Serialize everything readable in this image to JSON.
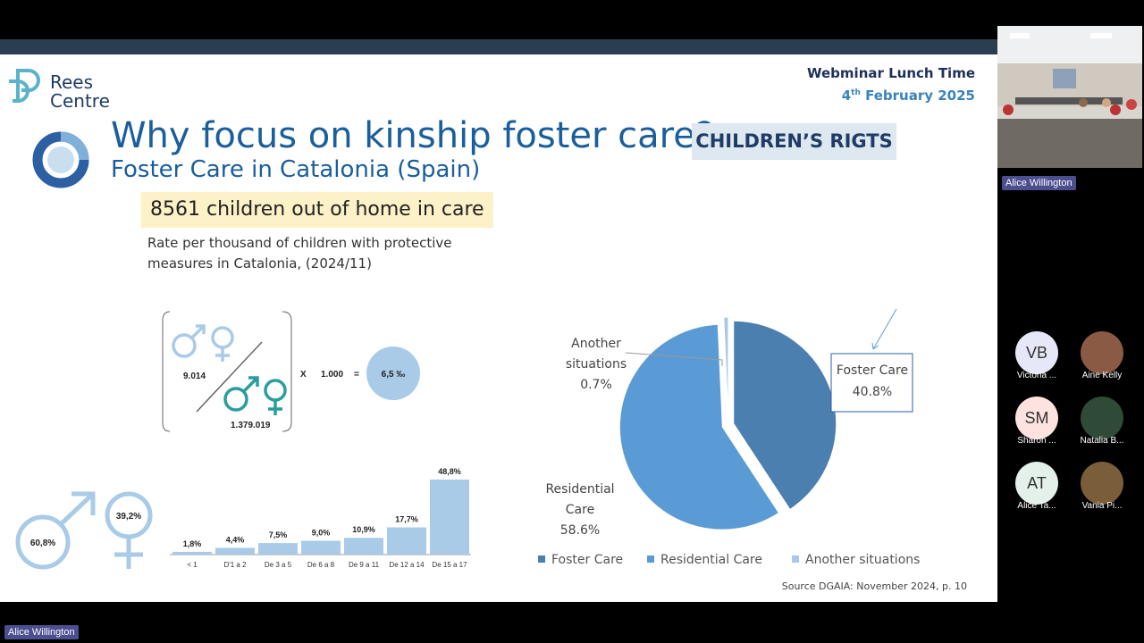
{
  "slide": {
    "logo_line1": "Rees",
    "logo_line2": "Centre",
    "event_title": "Webminar Lunch Time",
    "date_day": "4",
    "date_sup": "th",
    "date_rest": "February 2025",
    "title": "Why focus on kinship foster care?",
    "subtitle": "Foster Care in Catalonia (Spain)",
    "rights_box": "CHILDREN’S RIGTS",
    "highlight": "8561 children out of home in care",
    "rate_caption": "Rate per thousand of children with protective measures in Catalonia, (2024/11)",
    "formula": {
      "numerator": "9.014",
      "denominator": "1.379.019",
      "times": "X",
      "multiplier": "1.000",
      "equals": "=",
      "result": "6,5 ‰"
    },
    "gender": {
      "male_pct": "60,8%",
      "female_pct": "39,2%"
    },
    "source": "Source DGAIA: November 2024, p. 10",
    "colors": {
      "title": "#1a5e9c",
      "light_blue": "#a9cbe8",
      "teal": "#2a9d9f"
    }
  },
  "chart_data": [
    {
      "type": "bar",
      "categories": [
        "< 1",
        "D'1 a 2",
        "De 3 a 5",
        "De 6 a 8",
        "De 9 a 11",
        "De 12 a 14",
        "De 15 a 17"
      ],
      "values": [
        1.8,
        4.4,
        7.5,
        9.0,
        10.9,
        17.7,
        48.8
      ],
      "labels": [
        "1,8%",
        "4,4%",
        "7,5%",
        "9,0%",
        "10,9%",
        "17,7%",
        "48,8%"
      ],
      "ylim": [
        0,
        48.8
      ],
      "color": "#a9cbe8"
    },
    {
      "type": "pie",
      "series": [
        {
          "name": "Foster Care",
          "value": 40.8,
          "label": "Foster Care",
          "pct": "40.8%",
          "color": "#4a7fb0"
        },
        {
          "name": "Residential Care",
          "value": 58.6,
          "label": "Residential Care",
          "pct": "58.6%",
          "color": "#5b9bd5"
        },
        {
          "name": "Another situations",
          "value": 0.7,
          "label": "Another situations",
          "pct": "0.7%",
          "color": "#a9c8e6"
        }
      ],
      "legend": "bottom"
    }
  ],
  "meeting": {
    "self_name": "Alice Willington",
    "bottom_name": "Alice Willington",
    "participants": [
      {
        "initials": "VB",
        "name": "Victoria ...",
        "color": "#e6e8f7"
      },
      {
        "initials": "",
        "name": "Aine Kelly",
        "color": "#8a5a44"
      },
      {
        "initials": "SM",
        "name": "Sharon ...",
        "color": "#fde3df"
      },
      {
        "initials": "",
        "name": "Natalia B...",
        "color": "#2f4a36"
      },
      {
        "initials": "AT",
        "name": "Alice Ta...",
        "color": "#e3f1ea"
      },
      {
        "initials": "",
        "name": "Vania Pi...",
        "color": "#7a5e3a"
      }
    ]
  }
}
